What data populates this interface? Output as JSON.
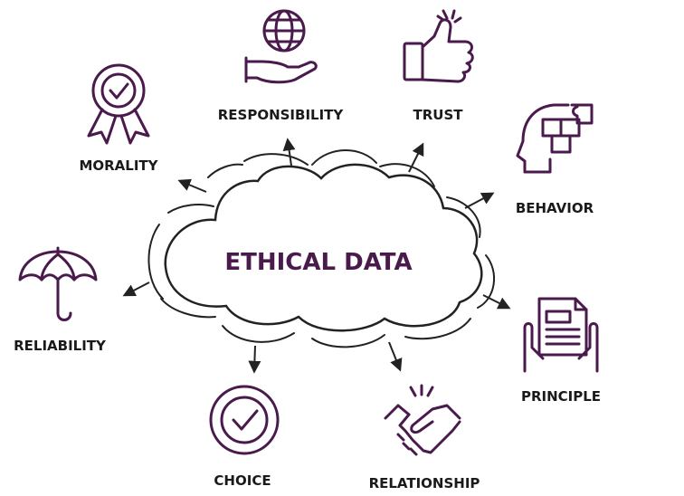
{
  "center": {
    "title": "ETHICAL DATA"
  },
  "nodes": {
    "responsibility": {
      "label": "RESPONSIBILITY",
      "icon": "globe-in-hand-icon"
    },
    "trust": {
      "label": "TRUST",
      "icon": "thumbs-up-icon"
    },
    "morality": {
      "label": "MORALITY",
      "icon": "award-ribbon-icon"
    },
    "behavior": {
      "label": "BEHAVIOR",
      "icon": "head-puzzle-icon"
    },
    "reliability": {
      "label": "RELIABILITY",
      "icon": "umbrella-icon"
    },
    "principle": {
      "label": "PRINCIPLE",
      "icon": "document-in-hands-icon"
    },
    "choice": {
      "label": "CHOICE",
      "icon": "check-circle-icon"
    },
    "relationship": {
      "label": "RELATIONSHIP",
      "icon": "handshake-icon"
    }
  },
  "colors": {
    "accent": "#4a1a4d",
    "outline": "#222222",
    "text": "#1a1a1a"
  }
}
